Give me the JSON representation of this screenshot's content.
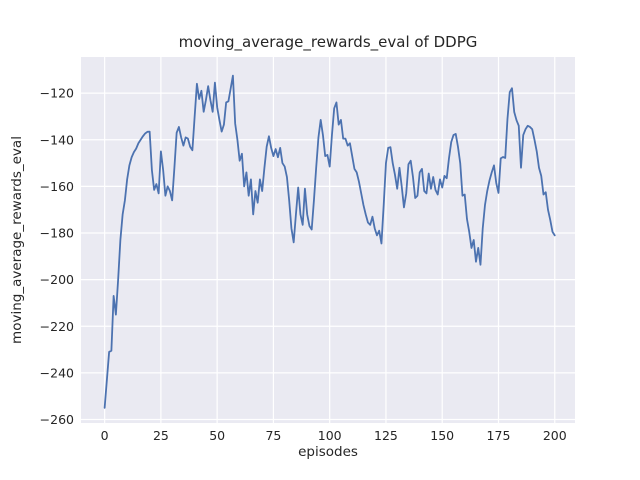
{
  "figure": {
    "title": "moving_average_rewards_eval of DDPG",
    "xlabel": "episodes",
    "ylabel": "moving_average_rewards_eval"
  },
  "chart_data": {
    "type": "line",
    "title": "moving_average_rewards_eval of DDPG",
    "xlabel": "episodes",
    "ylabel": "moving_average_rewards_eval",
    "legend_position": "none",
    "grid": true,
    "plot_bg_color": "#eaeaf2",
    "grid_color": "#ffffff",
    "line_color": "#4c72b0",
    "text_color": "#262626",
    "x_ticks": [
      0,
      25,
      50,
      75,
      100,
      125,
      150,
      175,
      200
    ],
    "y_ticks": [
      -120,
      -140,
      -160,
      -180,
      -200,
      -220,
      -240,
      -260
    ],
    "xlim": [
      -10.5,
      209
    ],
    "ylim": [
      -261.5,
      -104.5
    ],
    "x_start": 0,
    "x_step": 1,
    "x_end": 200,
    "values": [
      -255,
      -243,
      -231,
      -230.5,
      -207,
      -215,
      -200,
      -183,
      -172,
      -166,
      -157,
      -151,
      -147.5,
      -145.3,
      -143.8,
      -141.5,
      -140,
      -138.5,
      -137.3,
      -136.6,
      -136.5,
      -153,
      -161.5,
      -159,
      -163,
      -145,
      -153,
      -164,
      -160,
      -162,
      -166,
      -152,
      -137,
      -134.5,
      -139,
      -142.5,
      -139,
      -139.5,
      -143,
      -144.5,
      -130,
      -116,
      -122.5,
      -119,
      -128,
      -123,
      -117,
      -123,
      -128,
      -115.5,
      -126,
      -131.5,
      -136.5,
      -133.5,
      -124,
      -123.5,
      -118,
      -112.5,
      -133,
      -140,
      -149,
      -146,
      -160,
      -154,
      -164,
      -157,
      -172,
      -162,
      -167,
      -157,
      -162,
      -152,
      -143,
      -138.5,
      -143.5,
      -147,
      -144,
      -147.5,
      -143.5,
      -150,
      -151.5,
      -156,
      -166,
      -178,
      -184,
      -172,
      -160.5,
      -172,
      -176.5,
      -161,
      -172,
      -177,
      -178.5,
      -166,
      -152,
      -139,
      -131.5,
      -138,
      -147,
      -146.5,
      -151.5,
      -138,
      -126.5,
      -124,
      -133.5,
      -131.5,
      -139.5,
      -139.5,
      -142.5,
      -141.5,
      -147,
      -152.5,
      -154,
      -158,
      -163,
      -168,
      -172,
      -175.5,
      -176.5,
      -173,
      -178,
      -181,
      -179,
      -184.5,
      -168,
      -150,
      -143.5,
      -143.2,
      -150,
      -155,
      -161,
      -152,
      -160,
      -169,
      -163,
      -150.5,
      -149,
      -156,
      -165,
      -164,
      -154,
      -152.5,
      -162,
      -163,
      -154.5,
      -161,
      -156,
      -161.5,
      -163.5,
      -157,
      -160.5,
      -155.5,
      -156.5,
      -148,
      -141,
      -138,
      -137.5,
      -143,
      -150,
      -164,
      -163.5,
      -174,
      -179.5,
      -186.4,
      -183,
      -192.3,
      -186.4,
      -193.6,
      -178,
      -168,
      -162,
      -157.5,
      -154,
      -151,
      -158.5,
      -162.8,
      -148,
      -147.4,
      -147.8,
      -131,
      -119.6,
      -117.9,
      -128.1,
      -131.6,
      -134,
      -152,
      -138,
      -135.5,
      -134,
      -134.5,
      -135.5,
      -140,
      -145,
      -152,
      -155.5,
      -163.5,
      -162.5,
      -170,
      -174.4,
      -179.5,
      -181
    ]
  }
}
